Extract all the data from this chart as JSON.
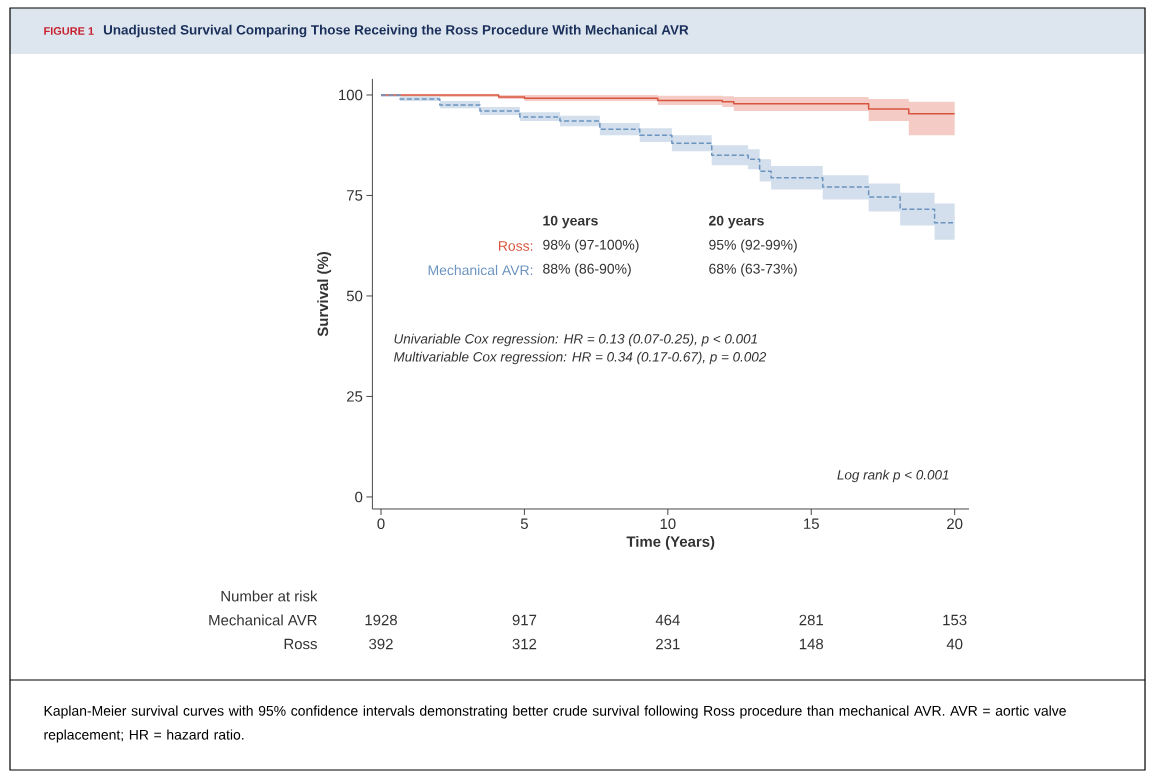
{
  "chart_data": {
    "type": "step",
    "title": "Unadjusted Survival Comparing Those Receiving the Ross Procedure With Mechanical AVR",
    "xlabel": "Time (Years)",
    "ylabel": "Survival (%)",
    "xlim": [
      -0.3,
      20.5
    ],
    "ylim": [
      -3,
      104
    ],
    "xticks": [
      0,
      5,
      10,
      15,
      20
    ],
    "yticks": [
      0,
      25,
      50,
      75,
      100
    ],
    "marker": "none",
    "series": [
      {
        "name": "Ross:",
        "color": "#d9543f",
        "line_style": "solid",
        "x": [
          0,
          4.1,
          5.0,
          9.65,
          11.9,
          12.3,
          17.0,
          18.4,
          20
        ],
        "values": [
          100,
          99.5,
          99.2,
          98.6,
          98.3,
          97.8,
          96.5,
          95.3,
          95.3
        ],
        "lower": [
          99.5,
          99,
          98.5,
          97.5,
          97,
          96,
          93.5,
          90,
          90
        ],
        "upper": [
          100,
          100,
          100,
          99.8,
          99.7,
          99.5,
          99,
          98.3,
          98.3
        ]
      },
      {
        "name": "Mechanical AVR:",
        "color": "#6c94c0",
        "line_style": "dashed",
        "x": [
          0,
          0.66,
          2.05,
          3.45,
          4.84,
          6.24,
          7.63,
          9.02,
          10.14,
          11.53,
          12.8,
          13.2,
          13.6,
          15.4,
          17.0,
          18.1,
          19.3,
          20
        ],
        "values": [
          100,
          99,
          97.5,
          96,
          94.5,
          93.5,
          91.5,
          90,
          88,
          85,
          84,
          81,
          79.4,
          77.1,
          74.6,
          71.6,
          68.2,
          68.2
        ],
        "lower": [
          99.5,
          98.5,
          96.7,
          95,
          93.5,
          92.2,
          90,
          88.3,
          86,
          82.5,
          81.5,
          78.5,
          76.5,
          74,
          71,
          67.5,
          64,
          64
        ],
        "upper": [
          100,
          99.6,
          98.5,
          97,
          95.7,
          94.8,
          93,
          91.7,
          90,
          87.5,
          86.5,
          84,
          82.3,
          80,
          78,
          75.7,
          73,
          73
        ]
      }
    ],
    "annotations": [
      "FIGURE 1",
      "10 years",
      "20 years",
      "98% (97-100%)",
      "95% (92-99%)",
      "88% (86-90%)",
      "68% (63-73%)",
      "Univariable Cox regression: HR = 0.13 (0.07-0.25), p < 0.001",
      "Multivariable Cox regression: HR = 0.34 (0.17-0.67), p = 0.002",
      "Log rank p < 0.001",
      "Number at risk",
      "Mechanical AVR",
      "1928",
      "917",
      "464",
      "281",
      "153",
      "Ross",
      "392",
      "312",
      "231",
      "148",
      "40",
      "Kaplan-Meier survival curves with 95% confidence intervals demonstrating better crude survival following Ross procedure than mechanical AVR. AVR = aortic valve replacement; HR = hazard ratio."
    ]
  }
}
